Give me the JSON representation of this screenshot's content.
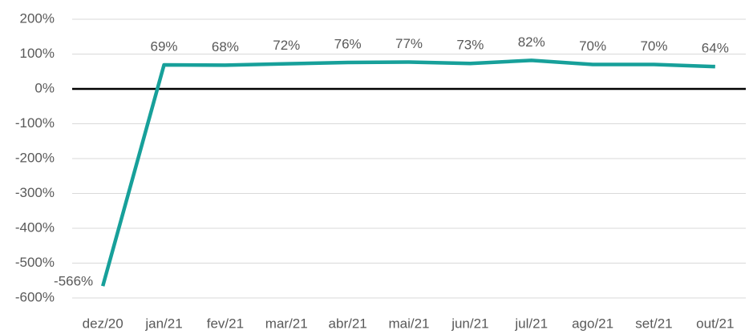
{
  "chart_data": {
    "type": "line",
    "categories": [
      "dez/20",
      "jan/21",
      "fev/21",
      "mar/21",
      "abr/21",
      "mai/21",
      "jun/21",
      "jul/21",
      "ago/21",
      "set/21",
      "out/21"
    ],
    "series": [
      {
        "name": null,
        "color": "#17a09a",
        "values": [
          -566,
          69,
          68,
          72,
          76,
          77,
          73,
          82,
          70,
          70,
          64
        ],
        "value_labels": [
          "-566%",
          "69%",
          "68%",
          "72%",
          "76%",
          "77%",
          "73%",
          "82%",
          "70%",
          "70%",
          "64%"
        ]
      }
    ],
    "ylim": [
      -600,
      200
    ],
    "yticks": [
      {
        "value": -600,
        "label": "-600%"
      },
      {
        "value": -500,
        "label": "-500%"
      },
      {
        "value": -400,
        "label": "-400%"
      },
      {
        "value": -300,
        "label": "-300%"
      },
      {
        "value": -200,
        "label": "-200%"
      },
      {
        "value": -100,
        "label": "-100%"
      },
      {
        "value": 0,
        "label": "0%"
      },
      {
        "value": 100,
        "label": "100%"
      },
      {
        "value": 200,
        "label": "200%"
      }
    ],
    "grid": true
  }
}
